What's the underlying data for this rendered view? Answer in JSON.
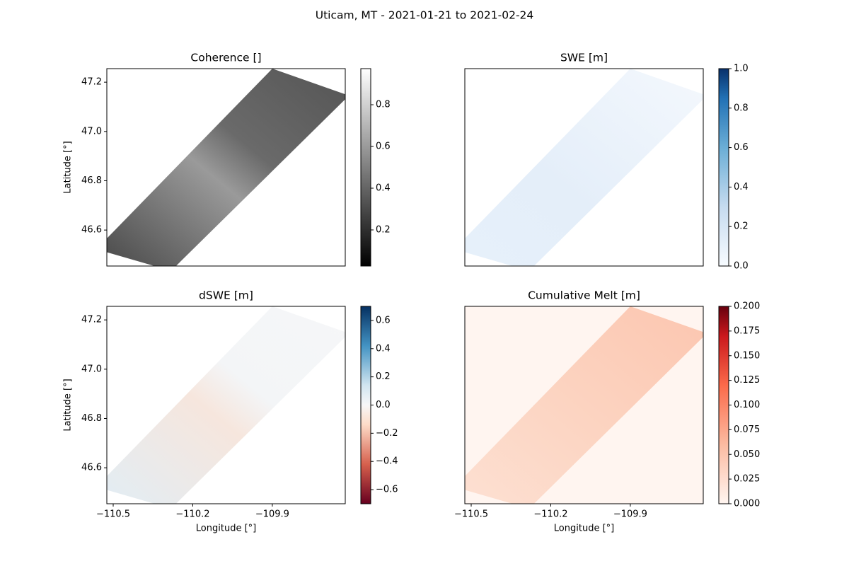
{
  "title": "Uticam, MT - 2021-01-21 to 2021-02-24",
  "chart_data": [
    {
      "type": "image",
      "title": "Coherence []",
      "ylabel": "Latitude [°]",
      "ylim": [
        46.454,
        47.255
      ],
      "yticks": [
        46.6,
        46.8,
        {
          "value": 47.0,
          "label": "47.0"
        },
        47.2
      ],
      "colormap": "gray",
      "clim": [
        0.027,
        0.973
      ],
      "cticks": [
        0.2,
        0.4,
        0.6,
        0.8
      ]
    },
    {
      "type": "image",
      "title": "SWE [m]",
      "colormap": "Blues",
      "clim": [
        0,
        1
      ],
      "cticks": [
        {
          "value": 0,
          "label": "0.0"
        },
        0.2,
        0.4,
        0.6,
        0.8,
        {
          "value": 1.0,
          "label": "1.0"
        }
      ]
    },
    {
      "type": "image",
      "title": "dSWE [m]",
      "ylabel": "Latitude [°]",
      "xlabel": "Longitude [°]",
      "xlim": [
        -110.524,
        -109.625
      ],
      "xticks": [
        {
          "value": -110.5,
          "label": "−110.5"
        },
        {
          "value": -110.2,
          "label": "−110.2"
        },
        {
          "value": -109.9,
          "label": "−109.9"
        }
      ],
      "ylim": [
        46.454,
        47.255
      ],
      "yticks": [
        46.6,
        46.8,
        {
          "value": 47.0,
          "label": "47.0"
        },
        47.2
      ],
      "colormap": "RdBu",
      "clim": [
        -0.7,
        0.7
      ],
      "cticks": [
        {
          "value": -0.6,
          "label": "−0.6"
        },
        {
          "value": -0.4,
          "label": "−0.4"
        },
        {
          "value": -0.2,
          "label": "−0.2"
        },
        {
          "value": 0,
          "label": "0.0"
        },
        0.2,
        0.4,
        0.6
      ]
    },
    {
      "type": "image",
      "title": "Cumulative Melt [m]",
      "xlabel": "Longitude [°]",
      "xlim": [
        -110.524,
        -109.625
      ],
      "xticks": [
        {
          "value": -110.5,
          "label": "−110.5"
        },
        {
          "value": -110.2,
          "label": "−110.2"
        },
        {
          "value": -109.9,
          "label": "−109.9"
        }
      ],
      "colormap": "Reds",
      "clim": [
        0,
        0.2
      ],
      "cticks": [
        {
          "value": 0,
          "label": "0.000"
        },
        {
          "value": 0.025,
          "label": "0.025"
        },
        {
          "value": 0.05,
          "label": "0.050"
        },
        {
          "value": 0.075,
          "label": "0.075"
        },
        {
          "value": 0.1,
          "label": "0.100"
        },
        {
          "value": 0.125,
          "label": "0.125"
        },
        {
          "value": 0.15,
          "label": "0.150"
        },
        {
          "value": 0.175,
          "label": "0.175"
        },
        {
          "value": 0.2,
          "label": "0.200"
        }
      ]
    }
  ]
}
